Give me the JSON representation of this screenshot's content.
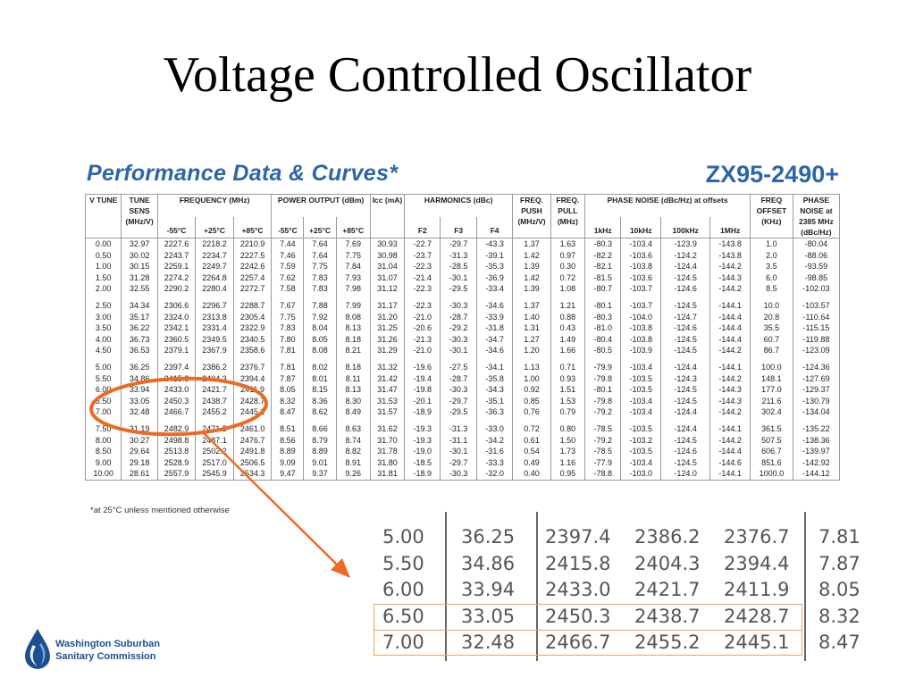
{
  "slide": {
    "title": "Voltage Controlled Oscillator"
  },
  "document": {
    "title": "Performance Data & Curves*",
    "model": "ZX95-2490+",
    "footnote": "*at 25°C unless mentioned otherwise",
    "header": {
      "v_tune": "V TUNE",
      "tune_sens": "TUNE SENS (MHz/V)",
      "frequency": "FREQUENCY (MHz)",
      "power_output": "POWER OUTPUT (dBm)",
      "icc": "Icc (mA)",
      "harmonics": "HARMONICS (dBc)",
      "freq_push": "FREQ. PUSH (MHz/V)",
      "freq_pull": "FREQ. PULL (MHz)",
      "phase_noise": "PHASE NOISE (dBc/Hz) at offsets",
      "freq_offset": "FREQ OFFSET (KHz)",
      "phase_noise_2385": "PHASE NOISE at 2385 MHz (dBc/Hz)",
      "temps": [
        "-55°C",
        "+25°C",
        "+85°C"
      ],
      "harm_cols": [
        "F2",
        "F3",
        "F4"
      ],
      "pn_cols": [
        "1kHz",
        "10kHz",
        "100kHz",
        "1MHz"
      ]
    },
    "rows": [
      [
        "0.00",
        "32.97",
        "2227.6",
        "2218.2",
        "2210.9",
        "7.44",
        "7.64",
        "7.69",
        "30.93",
        "-22.7",
        "-29.7",
        "-43.3",
        "1.37",
        "1.63",
        "-80.3",
        "-103.4",
        "-123.9",
        "-143.8"
      ],
      [
        "0.50",
        "30.02",
        "2243.7",
        "2234.7",
        "2227.5",
        "7.46",
        "7.64",
        "7.75",
        "30.98",
        "-23.7",
        "-31.3",
        "-39.1",
        "1.42",
        "0.97",
        "-82.2",
        "-103.6",
        "-124.2",
        "-143.8"
      ],
      [
        "1.00",
        "30.15",
        "2259.1",
        "2249.7",
        "2242.6",
        "7.59",
        "7.75",
        "7.84",
        "31.04",
        "-22.3",
        "-28.5",
        "-35.3",
        "1.39",
        "0.30",
        "-82.1",
        "-103.8",
        "-124.4",
        "-144.2"
      ],
      [
        "1.50",
        "31.28",
        "2274.2",
        "2264.8",
        "2257.4",
        "7.62",
        "7.83",
        "7.93",
        "31.07",
        "-21.4",
        "-30.1",
        "-36.9",
        "1.42",
        "0.72",
        "-81.5",
        "-103.6",
        "-124.5",
        "-144.3"
      ],
      [
        "2.00",
        "32.55",
        "2290.2",
        "2280.4",
        "2272.7",
        "7.58",
        "7.83",
        "7.98",
        "31.12",
        "-22.3",
        "-29.5",
        "-33.4",
        "1.39",
        "1.08",
        "-80.7",
        "-103.7",
        "-124.6",
        "-144.2"
      ],
      [
        "2.50",
        "34.34",
        "2306.6",
        "2296.7",
        "2288.7",
        "7.67",
        "7.88",
        "7.99",
        "31.17",
        "-22.3",
        "-30.3",
        "-34.6",
        "1.37",
        "1.21",
        "-80.1",
        "-103.7",
        "-124.5",
        "-144.1"
      ],
      [
        "3.00",
        "35.17",
        "2324.0",
        "2313.8",
        "2305.4",
        "7.75",
        "7.92",
        "8.08",
        "31.20",
        "-21.0",
        "-28.7",
        "-33.9",
        "1.40",
        "0.88",
        "-80.3",
        "-104.0",
        "-124.7",
        "-144.4"
      ],
      [
        "3.50",
        "36.22",
        "2342.1",
        "2331.4",
        "2322.9",
        "7.83",
        "8.04",
        "8.13",
        "31.25",
        "-20.6",
        "-29.2",
        "-31.8",
        "1.31",
        "0.43",
        "-81.0",
        "-103.8",
        "-124.6",
        "-144.4"
      ],
      [
        "4.00",
        "36.73",
        "2360.5",
        "2349.5",
        "2340.5",
        "7.80",
        "8.05",
        "8.18",
        "31.26",
        "-21.3",
        "-30.3",
        "-34.7",
        "1.27",
        "1.49",
        "-80.4",
        "-103.8",
        "-124.5",
        "-144.4"
      ],
      [
        "4.50",
        "36.53",
        "2379.1",
        "2367.9",
        "2358.6",
        "7.81",
        "8.08",
        "8.21",
        "31.29",
        "-21.0",
        "-30.1",
        "-34.6",
        "1.20",
        "1.66",
        "-80.5",
        "-103.9",
        "-124.5",
        "-144.2"
      ],
      [
        "5.00",
        "36.25",
        "2397.4",
        "2386.2",
        "2376.7",
        "7.81",
        "8.02",
        "8.18",
        "31.32",
        "-19.6",
        "-27.5",
        "-34.1",
        "1.13",
        "0.71",
        "-79.9",
        "-103.4",
        "-124.4",
        "-144.1"
      ],
      [
        "5.50",
        "34.86",
        "2415.8",
        "2404.3",
        "2394.4",
        "7.87",
        "8.01",
        "8.11",
        "31.42",
        "-19.4",
        "-28.7",
        "-35.8",
        "1.00",
        "0.93",
        "-79.8",
        "-103.5",
        "-124.3",
        "-144.2"
      ],
      [
        "6.00",
        "33.94",
        "2433.0",
        "2421.7",
        "2411.9",
        "8.05",
        "8.15",
        "8.13",
        "31.47",
        "-19.8",
        "-30.3",
        "-34.3",
        "0.92",
        "1.51",
        "-80.1",
        "-103.5",
        "-124.5",
        "-144.3"
      ],
      [
        "6.50",
        "33.05",
        "2450.3",
        "2438.7",
        "2428.7",
        "8.32",
        "8.36",
        "8.30",
        "31.53",
        "-20.1",
        "-29.7",
        "-35.1",
        "0.85",
        "1.53",
        "-79.8",
        "-103.4",
        "-124.5",
        "-144.3"
      ],
      [
        "7.00",
        "32.48",
        "2466.7",
        "2455.2",
        "2445.1",
        "8.47",
        "8.62",
        "8.49",
        "31.57",
        "-18.9",
        "-29.5",
        "-36.3",
        "0.76",
        "0.79",
        "-79.2",
        "-103.4",
        "-124.4",
        "-144.2"
      ],
      [
        "7.50",
        "31.19",
        "2482.9",
        "2471.5",
        "2461.0",
        "8.51",
        "8.66",
        "8.63",
        "31.62",
        "-19.3",
        "-31.3",
        "-33.0",
        "0.72",
        "0.80",
        "-78.5",
        "-103.5",
        "-124.4",
        "-144.1"
      ],
      [
        "8.00",
        "30.27",
        "2498.8",
        "2487.1",
        "2476.7",
        "8.56",
        "8.79",
        "8.74",
        "31.70",
        "-19.3",
        "-31.1",
        "-34.2",
        "0.61",
        "1.50",
        "-79.2",
        "-103.2",
        "-124.5",
        "-144.2"
      ],
      [
        "8.50",
        "29.64",
        "2513.8",
        "2502.2",
        "2491.8",
        "8.89",
        "8.89",
        "8.82",
        "31.78",
        "-19.0",
        "-30.1",
        "-31.6",
        "0.54",
        "1.73",
        "-78.5",
        "-103.5",
        "-124.6",
        "-144.4"
      ],
      [
        "9.00",
        "29.18",
        "2528.9",
        "2517.0",
        "2506.5",
        "9.09",
        "9.01",
        "8.91",
        "31.80",
        "-18.5",
        "-29.7",
        "-33.3",
        "0.49",
        "1.16",
        "-77.9",
        "-103.4",
        "-124.5",
        "-144.6"
      ],
      [
        "10.00",
        "28.61",
        "2557.9",
        "2545.9",
        "2534.3",
        "9.47",
        "9.37",
        "9.26",
        "31.81",
        "-18.9",
        "-30.3",
        "-32.0",
        "0.40",
        "0.95",
        "-78.8",
        "-103.0",
        "-124.0",
        "-144.1"
      ]
    ],
    "offset_rows": [
      [
        "1.0",
        "-80.04"
      ],
      [
        "2.0",
        "-88.06"
      ],
      [
        "3.5",
        "-93.59"
      ],
      [
        "6.0",
        "-98.85"
      ],
      [
        "8.5",
        "-102.03"
      ],
      [
        "10.0",
        "-103.57"
      ],
      [
        "20.8",
        "-110.64"
      ],
      [
        "35.5",
        "-115.15"
      ],
      [
        "60.7",
        "-119.88"
      ],
      [
        "86.7",
        "-123.09"
      ],
      [
        "100.0",
        "-124.36"
      ],
      [
        "148.1",
        "-127.69"
      ],
      [
        "177.0",
        "-129.37"
      ],
      [
        "211.6",
        "-130.79"
      ],
      [
        "302.4",
        "-134.04"
      ],
      [
        "361.5",
        "-135.22"
      ],
      [
        "507.5",
        "-138.36"
      ],
      [
        "606.7",
        "-139.97"
      ],
      [
        "851.6",
        "-142.92"
      ],
      [
        "1000.0",
        "-144.12"
      ]
    ]
  },
  "zoom": {
    "rows": [
      [
        "5.00",
        "36.25",
        "2397.4",
        "2386.2",
        "2376.7",
        "7.81"
      ],
      [
        "5.50",
        "34.86",
        "2415.8",
        "2404.3",
        "2394.4",
        "7.87"
      ],
      [
        "6.00",
        "33.94",
        "2433.0",
        "2421.7",
        "2411.9",
        "8.05"
      ],
      [
        "6.50",
        "33.05",
        "2450.3",
        "2438.7",
        "2428.7",
        "8.32"
      ],
      [
        "7.00",
        "32.48",
        "2466.7",
        "2455.2",
        "2445.1",
        "8.47"
      ]
    ]
  },
  "logo": {
    "line1": "Washington Suburban",
    "line2": "Sanitary Commission",
    "accent": "#1b4f8f"
  },
  "colors": {
    "doc_blue": "#2d66a8",
    "annotation": "#ee6a22"
  }
}
